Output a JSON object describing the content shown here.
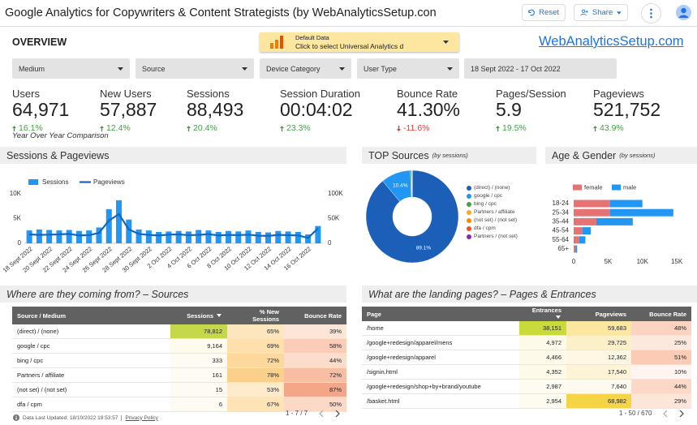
{
  "header": {
    "title": "Google Analytics for Copywriters & Content Strategists (by WebAnalyticsSetup.con",
    "reset_button": "Reset",
    "share_button": "Share"
  },
  "overview": {
    "heading": "OVERVIEW",
    "data_source_label": "Default Data",
    "data_source_prompt": "Click to select Universal Analytics d",
    "link": "WebAnalyticsSetup.com"
  },
  "filters": [
    "Medium",
    "Source",
    "Device Category",
    "User Type",
    "18 Sept 2022 - 17 Oct 2022"
  ],
  "kpis": [
    {
      "label": "Users",
      "value": "64,971",
      "change": "16.1%"
    },
    {
      "label": "New Users",
      "value": "57,887",
      "change": "12.4%"
    },
    {
      "label": "Sessions",
      "value": "88,493",
      "change": "20.4%"
    },
    {
      "label": "Session Duration",
      "value": "00:04:02",
      "change": "23.3%"
    },
    {
      "label": "Bounce Rate",
      "value": "41.30%",
      "change": "-11.6%"
    },
    {
      "label": "Pages/Session",
      "value": "5.9",
      "change": "19.5%"
    },
    {
      "label": "Pageviews",
      "value": "521,752",
      "change": "43.9%"
    }
  ],
  "kpi_note": "Year Over Year Comparison",
  "chart_data": [
    {
      "type": "combo",
      "title": "Sessions & Pageviews",
      "categories": [
        "18 Sept 2022",
        null,
        "20 Sept 2022",
        null,
        "22 Sept 2022",
        null,
        "24 Sept 2022",
        null,
        "26 Sept 2022",
        null,
        "28 Sept 2022",
        null,
        "30 Sept 2022",
        null,
        "2 Oct 2022",
        null,
        "4 Oct 2022",
        null,
        "6 Oct 2022",
        null,
        "8 Oct 2022",
        null,
        "10 Oct 2022",
        null,
        "12 Oct 2022",
        null,
        "14 Oct 2022",
        null,
        "16 Oct 2022",
        null
      ],
      "series": [
        {
          "name": "Sessions",
          "type": "bar",
          "color": "#2196f3",
          "values": [
            2600,
            2800,
            2700,
            2600,
            2700,
            2500,
            2600,
            3200,
            6900,
            8700,
            4800,
            2800,
            2600,
            2300,
            2400,
            2500,
            2400,
            2700,
            2600,
            2300,
            2500,
            2400,
            2600,
            2300,
            2200,
            2500,
            2400,
            2300,
            1800,
            3500
          ]
        },
        {
          "name": "Pageviews",
          "type": "line",
          "axis": "y2",
          "color": "#1565c0",
          "values": [
            18000,
            17000,
            17500,
            18000,
            19000,
            16000,
            16500,
            21000,
            46000,
            59000,
            28000,
            19000,
            17000,
            16000,
            17500,
            18000,
            16500,
            17000,
            18500,
            16000,
            17000,
            16500,
            17500,
            15500,
            15000,
            17000,
            16500,
            16000,
            11000,
            30000
          ]
        }
      ],
      "ylim": [
        0,
        10000
      ],
      "yticks": [
        0,
        {
          "value": 5000,
          "label": "5K"
        },
        {
          "value": 10000,
          "label": "10K"
        }
      ],
      "y2lim": [
        0,
        100000
      ],
      "y2ticks": [
        0,
        {
          "value": 50000,
          "label": "50K"
        },
        {
          "value": 100000,
          "label": "100K"
        }
      ]
    },
    {
      "type": "pie",
      "title": "TOP Sources",
      "subtitle": "(by sessions)",
      "categories": [
        "(direct) / (none)",
        "google / cpc",
        "bing / cpc",
        "Partners / affiliate",
        "(not set) / (not set)",
        "dfa / cpm",
        "Partners / (not set)"
      ],
      "values": [
        89.1,
        10.4,
        0.4,
        0.2,
        0.02,
        0.01,
        0.001
      ],
      "value_labels": [
        "89.1%",
        "10.4%",
        null,
        null,
        null,
        null,
        null
      ],
      "colors": [
        "#1b5fb8",
        "#2196f3",
        "#43a047",
        "#f9a825",
        "#fb8c00",
        "#f4511e",
        "#8e24aa"
      ]
    },
    {
      "type": "hbar",
      "title": "Age & Gender",
      "subtitle": "(by sessions)",
      "stacked": true,
      "categories": [
        "18-24",
        "25-34",
        "35-44",
        "45-54",
        "55-64",
        "65+"
      ],
      "series": [
        {
          "name": "female",
          "color": "#e57373",
          "values": [
            5300,
            5300,
            3300,
            1300,
            800,
            300
          ]
        },
        {
          "name": "male",
          "color": "#2196f3",
          "values": [
            4700,
            9200,
            5300,
            1200,
            900,
            200
          ]
        }
      ],
      "xlim": [
        0,
        15700
      ],
      "xticks": [
        0,
        {
          "value": 5000,
          "label": "5K"
        },
        {
          "value": 10000,
          "label": "10K"
        },
        {
          "value": 15000,
          "label": "15K"
        }
      ]
    }
  ],
  "tables": [
    {
      "title": "Where are they coming from? – Sources",
      "columns": [
        "Source / Medium",
        "Sessions",
        "% New Sessions",
        "Bounce Rate"
      ],
      "rows": [
        [
          "(direct) / (none)",
          "78,812",
          "65%",
          "39%"
        ],
        [
          "google / cpc",
          "9,164",
          "69%",
          "58%"
        ],
        [
          "bing / cpc",
          "333",
          "72%",
          "44%"
        ],
        [
          "Partners / affiliate",
          "161",
          "78%",
          "72%"
        ],
        [
          "(not set) / (not set)",
          "15",
          "53%",
          "87%"
        ],
        [
          "dfa / cpm",
          "6",
          "67%",
          "50%"
        ]
      ],
      "pagination": "1 - 7 / 7"
    },
    {
      "title": "What are the landing pages? – Pages & Entrances",
      "columns": [
        "Page",
        "Entrances",
        "Pageviews",
        "Bounce Rate"
      ],
      "rows": [
        [
          "/home",
          "38,151",
          "59,683",
          "48%"
        ],
        [
          "/google+redesign/apparel/mens",
          "4,972",
          "29,725",
          "25%"
        ],
        [
          "/google+redesign/apparel",
          "4,466",
          "12,362",
          "51%"
        ],
        [
          "/signin.html",
          "4,352",
          "17,540",
          "10%"
        ],
        [
          "/google+redesign/shop+by+brand/youtube",
          "2,987",
          "7,640",
          "44%"
        ],
        [
          "/basket.html",
          "2,954",
          "68,982",
          "29%"
        ]
      ],
      "pagination": "1 - 50 / 670"
    }
  ],
  "footer": {
    "updated": "Data Last Updated: 18/10/2022 19:53:57",
    "privacy": "Privacy Policy"
  }
}
